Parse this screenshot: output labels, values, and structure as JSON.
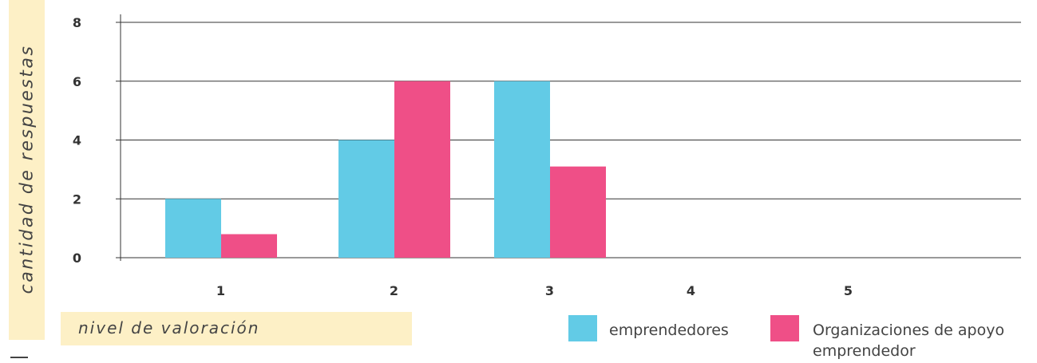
{
  "chart_data": {
    "type": "bar",
    "categories": [
      "1",
      "2",
      "3",
      "4",
      "5"
    ],
    "series": [
      {
        "name": "emprendedores",
        "color": "#62cbe6",
        "values": [
          2,
          4,
          6,
          0,
          0
        ]
      },
      {
        "name": "Organizaciones de apoyo emprendedor",
        "color": "#ef4f87",
        "values": [
          0.8,
          6,
          3.1,
          0,
          0
        ]
      }
    ],
    "yticks": [
      "0",
      "2",
      "4",
      "6",
      "8"
    ],
    "ylim": [
      0,
      8
    ],
    "xlabel": "nivel de valoración",
    "ylabel": "cantidad de respuestas",
    "grid": true,
    "legend": "bottom-right"
  }
}
